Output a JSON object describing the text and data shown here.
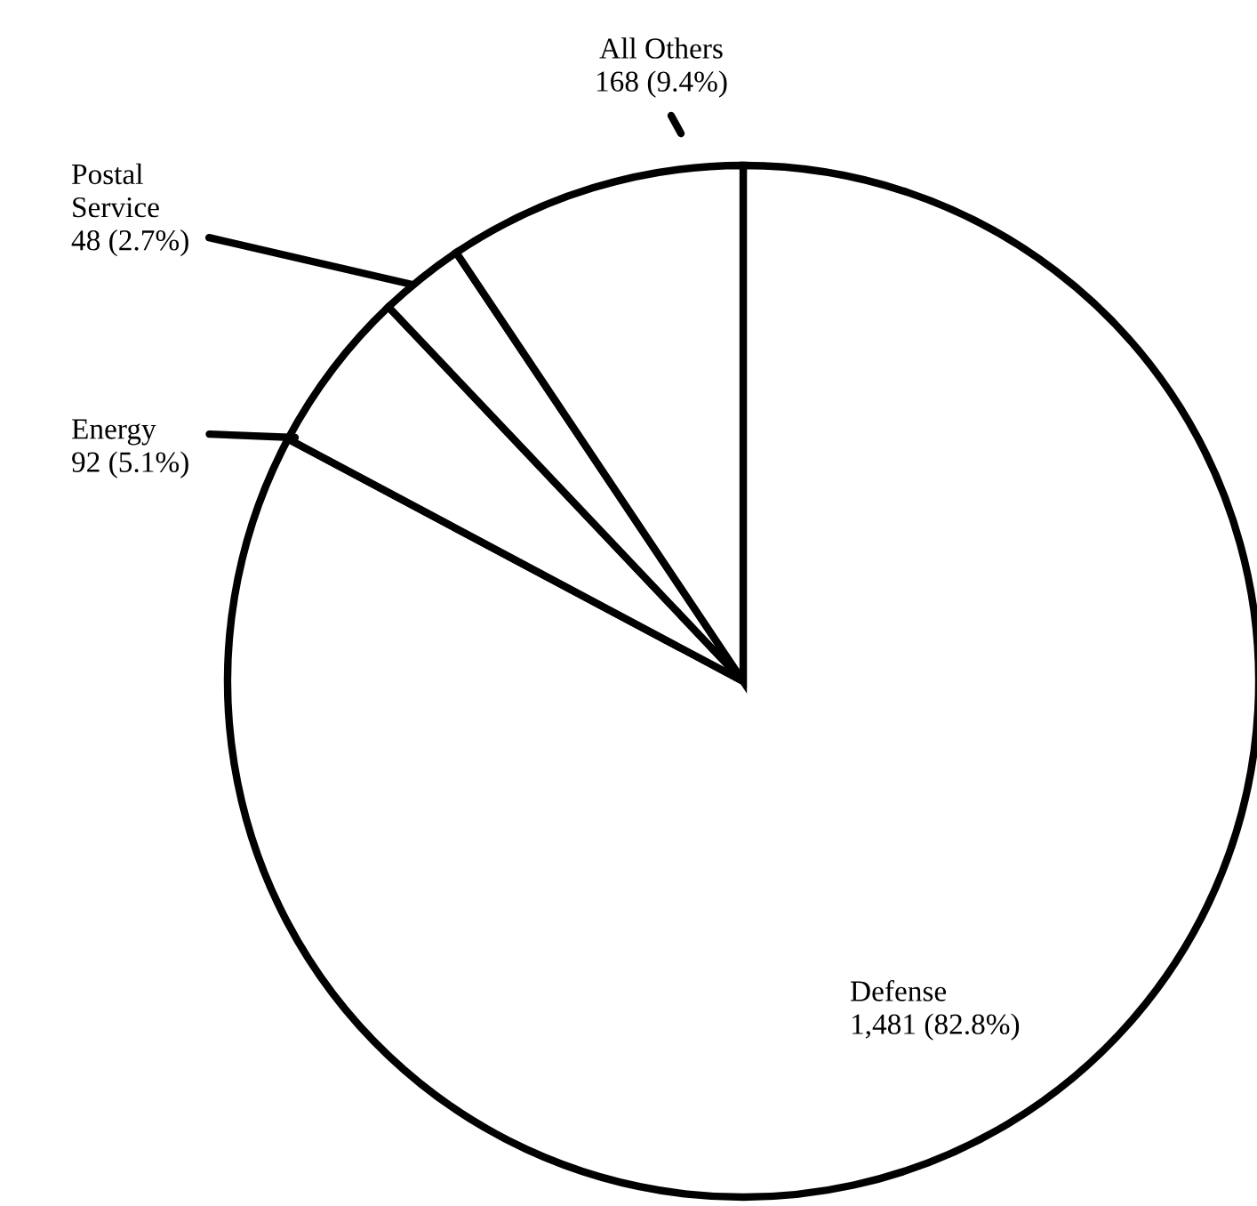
{
  "chart_data": {
    "type": "pie",
    "categories": [
      "Defense",
      "Energy",
      "Postal Service",
      "All Others"
    ],
    "values": [
      1481,
      92,
      48,
      168
    ],
    "value_labels": [
      "1,481 (82.8%)",
      "92 (5.1%)",
      "48 (2.7%)",
      "168 (9.4%)"
    ],
    "colors": [
      "#ffffff",
      "#ffffff",
      "#ffffff",
      "#ffffff"
    ]
  }
}
